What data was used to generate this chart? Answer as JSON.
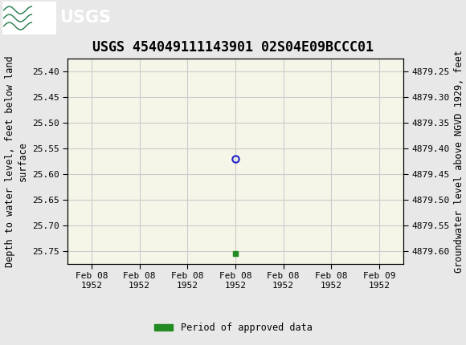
{
  "title": "USGS 454049111143901 02S04E09BCCC01",
  "ylabel_left": "Depth to water level, feet below land\nsurface",
  "ylabel_right": "Groundwater level above NGVD 1929, feet",
  "ylim_left_bottom": 25.775,
  "ylim_left_top": 25.375,
  "yticks_left": [
    25.4,
    25.45,
    25.5,
    25.55,
    25.6,
    25.65,
    25.7,
    25.75
  ],
  "yticks_right": [
    4879.6,
    4879.55,
    4879.5,
    4879.45,
    4879.4,
    4879.35,
    4879.3,
    4879.25
  ],
  "ylim_right_top": 4879.225,
  "ylim_right_bottom": 4879.625,
  "data_point_y": 25.57,
  "data_point_x": 3,
  "data_marker_y": 25.755,
  "data_marker_x": 3,
  "header_bg_color": "#1e7a46",
  "plot_bg_color": "#f5f5e8",
  "grid_color": "#cccccc",
  "data_point_color": "#2222cc",
  "data_marker_color": "#228B22",
  "legend_label": "Period of approved data",
  "legend_color": "#228B22",
  "title_fontsize": 12,
  "axis_label_fontsize": 8.5,
  "tick_fontsize": 8,
  "xtick_labels": [
    "Feb 08\n1952",
    "Feb 08\n1952",
    "Feb 08\n1952",
    "Feb 08\n1952",
    "Feb 08\n1952",
    "Feb 08\n1952",
    "Feb 09\n1952"
  ],
  "xtick_positions": [
    0,
    1,
    2,
    3,
    4,
    5,
    6
  ],
  "fig_width": 5.8,
  "fig_height": 4.3,
  "fig_dpi": 100
}
